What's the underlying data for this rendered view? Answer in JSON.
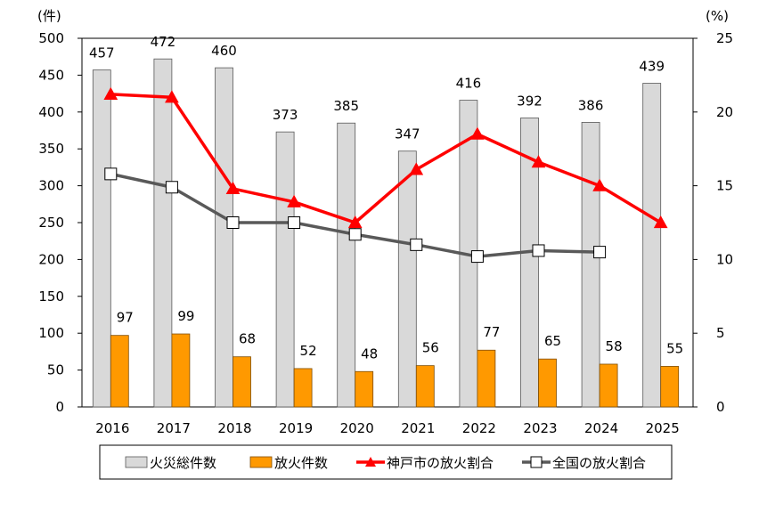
{
  "chart_data": {
    "type": "bar",
    "left_axis_unit": "(件)",
    "right_axis_unit": "(%)",
    "categories": [
      "2016",
      "2017",
      "2018",
      "2019",
      "2020",
      "2021",
      "2022",
      "2023",
      "2024",
      "2025"
    ],
    "left_ylim": [
      0,
      500
    ],
    "left_ticks": [
      0,
      50,
      100,
      150,
      200,
      250,
      300,
      350,
      400,
      450,
      500
    ],
    "right_ylim": [
      0,
      25
    ],
    "right_ticks": [
      0,
      5,
      10,
      15,
      20,
      25
    ],
    "series": [
      {
        "name": "火災総件数",
        "kind": "bar",
        "axis": "left",
        "color": "#d9d9d9",
        "stroke": "#595959",
        "values": [
          457,
          472,
          460,
          373,
          385,
          347,
          416,
          392,
          386,
          439
        ]
      },
      {
        "name": "放火件数",
        "kind": "bar",
        "axis": "left",
        "color": "#ff9900",
        "stroke": "#7f4c00",
        "values": [
          97,
          99,
          68,
          52,
          48,
          56,
          77,
          65,
          58,
          55
        ]
      },
      {
        "name": "神戸市の放火割合",
        "kind": "line",
        "axis": "right",
        "color": "#ff0000",
        "marker": "triangle",
        "values": [
          21.2,
          21.0,
          14.8,
          13.9,
          12.5,
          16.1,
          18.5,
          16.6,
          15.0,
          12.5
        ]
      },
      {
        "name": "全国の放火割合",
        "kind": "line",
        "axis": "right",
        "color": "#595959",
        "marker": "square",
        "values": [
          15.8,
          14.9,
          12.5,
          12.5,
          11.7,
          11.0,
          10.2,
          10.6,
          10.5,
          null
        ]
      }
    ],
    "legend_position": "bottom"
  }
}
